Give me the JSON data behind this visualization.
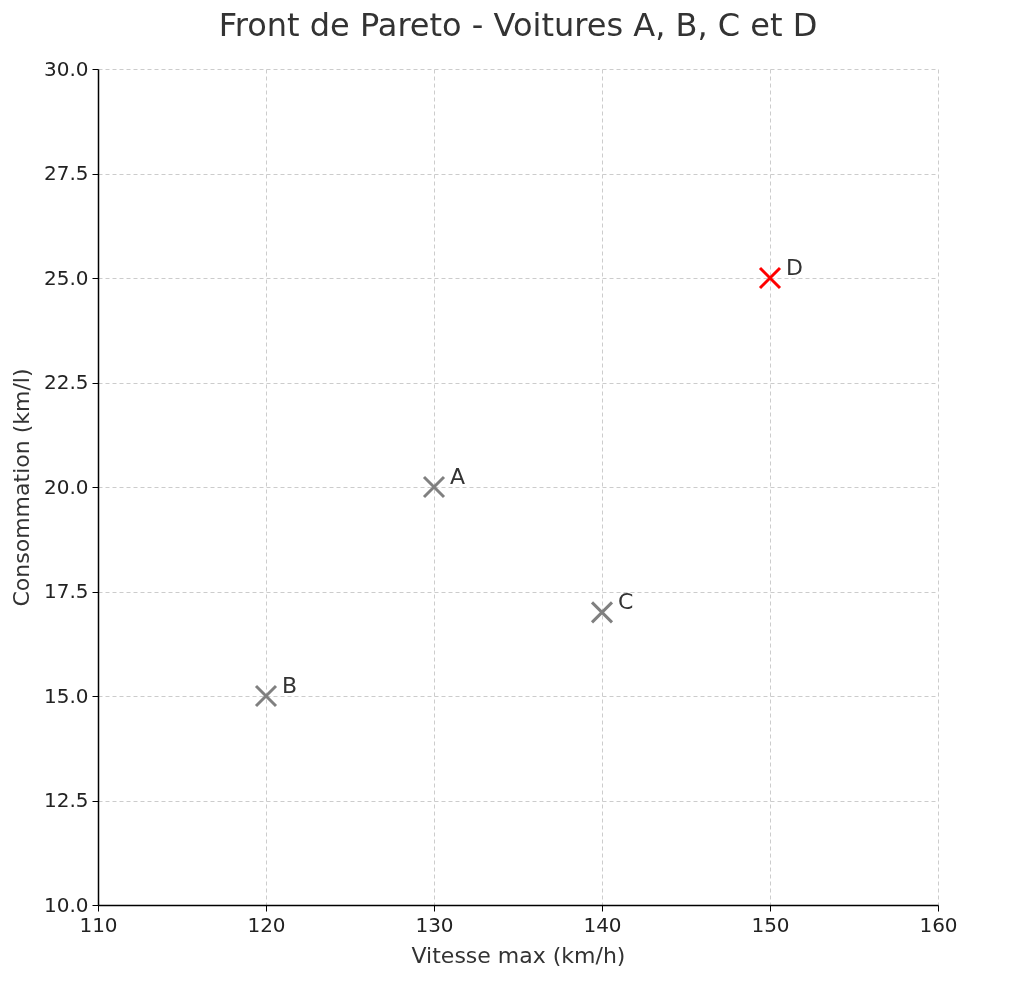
{
  "chart_data": {
    "type": "scatter",
    "title": "Front de Pareto - Voitures A, B, C et D",
    "xlabel": "Vitesse max (km/h)",
    "ylabel": "Consommation (km/l)",
    "x": [
      130,
      120,
      140,
      150
    ],
    "values": [
      20,
      15,
      17,
      25
    ],
    "colors": [
      "#808080",
      "#808080",
      "#808080",
      "#ff0000"
    ],
    "annotations": [
      {
        "text": "A",
        "x": 130,
        "y": 20
      },
      {
        "text": "B",
        "x": 120,
        "y": 15
      },
      {
        "text": "C",
        "x": 140,
        "y": 17
      },
      {
        "text": "D",
        "x": 150,
        "y": 25
      }
    ],
    "xlim": [
      110,
      160
    ],
    "xticks": [
      110,
      120,
      130,
      140,
      150,
      160
    ],
    "ylim": [
      10,
      30
    ],
    "yticks": [
      {
        "value": 10,
        "label": "10.0"
      },
      12.5,
      {
        "value": 15,
        "label": "15.0"
      },
      17.5,
      {
        "value": 20,
        "label": "20.0"
      },
      22.5,
      {
        "value": 25,
        "label": "25.0"
      },
      27.5,
      {
        "value": 30,
        "label": "30.0"
      }
    ],
    "grid": true,
    "marker": "cross"
  }
}
